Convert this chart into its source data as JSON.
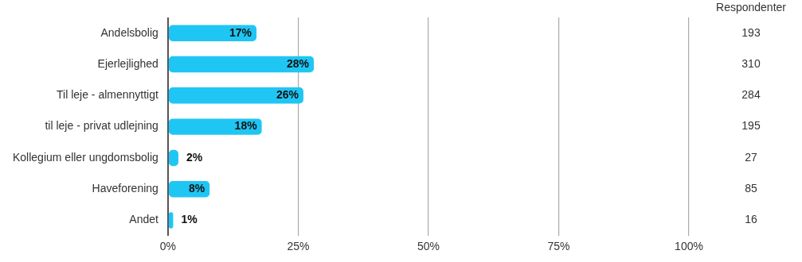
{
  "chart_data": {
    "type": "bar",
    "orientation": "horizontal",
    "categories": [
      "Andelsbolig",
      "Ejerlejlighed",
      "Til leje - almennyttigt",
      "til leje - privat udlejning",
      "Kollegium eller ungdomsbolig",
      "Haveforening",
      "Andet"
    ],
    "values": [
      17,
      28,
      26,
      18,
      2,
      8,
      1
    ],
    "value_labels": [
      "17%",
      "28%",
      "26%",
      "18%",
      "2%",
      "8%",
      "1%"
    ],
    "color": "#1fc6f4",
    "xlim": [
      0,
      100
    ],
    "xticks": [
      {
        "value": 0,
        "label": "0%"
      },
      {
        "value": 25,
        "label": "25%"
      },
      {
        "value": 50,
        "label": "50%"
      },
      {
        "value": 75,
        "label": "75%"
      },
      {
        "value": 100,
        "label": "100%"
      }
    ],
    "grid": "x",
    "legend": false,
    "annotations": [
      "Respondenter",
      "193",
      "310",
      "284",
      "195",
      "27",
      "85",
      "16"
    ]
  }
}
